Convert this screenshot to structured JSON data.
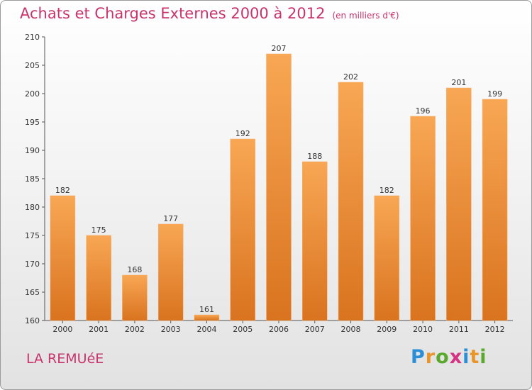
{
  "header": {
    "title": "Achats et Charges Externes 2000 à 2012",
    "subtitle": "(en milliers d'€)"
  },
  "footer": {
    "commune": "LA REMUéE",
    "logo_letters": [
      "P",
      "r",
      "o",
      "x",
      "i",
      "t",
      "i"
    ],
    "logo_colors": [
      "#2a8fd6",
      "#e8962a",
      "#5aa82e",
      "#d63384",
      "#2a8fd6",
      "#e8962a",
      "#5aa82e"
    ]
  },
  "colors": {
    "bar_top": "#f8a754",
    "bar_bottom": "#d9731f",
    "text_accent": "#c8336b"
  },
  "chart_data": {
    "type": "bar",
    "categories": [
      "2000",
      "2001",
      "2002",
      "2003",
      "2004",
      "2005",
      "2006",
      "2007",
      "2008",
      "2009",
      "2010",
      "2011",
      "2012"
    ],
    "values": [
      182,
      175,
      168,
      177,
      161,
      192,
      207,
      188,
      202,
      182,
      196,
      201,
      199
    ],
    "value_labels": [
      "182",
      "175",
      "168",
      "177",
      "161",
      "192",
      "207",
      "188",
      "202",
      "182",
      "196",
      "201",
      "199"
    ],
    "ylim": [
      160,
      210
    ],
    "yticks": [
      160,
      165,
      170,
      175,
      180,
      185,
      190,
      195,
      200,
      205,
      210
    ],
    "ytick_labels": [
      "160",
      "165",
      "170",
      "175",
      "180",
      "185",
      "190",
      "195",
      "200",
      "205",
      "210"
    ],
    "grid": false,
    "title": "Achats et Charges Externes 2000 à 2012",
    "xlabel": "",
    "ylabel": ""
  }
}
